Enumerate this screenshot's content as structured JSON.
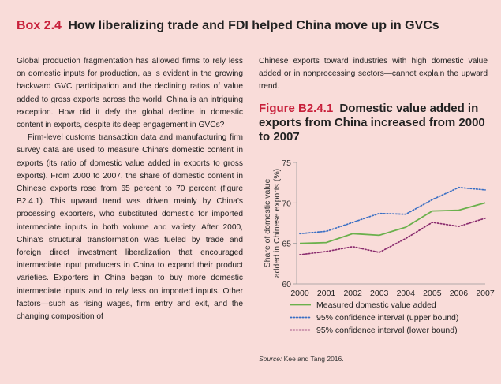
{
  "box": {
    "number": "Box 2.4",
    "title": "How liberalizing trade and FDI helped China move up in GVCs"
  },
  "body": {
    "paragraph1": "Global production fragmentation has allowed firms to rely less on domestic inputs for production, as is evident in the growing backward GVC participation and the declining ratios of value added to gross exports across the world. China is an intriguing exception. How did it defy the global decline in domestic content in exports, despite its deep engagement in GVCs?",
    "paragraph2": "Firm-level customs transaction data and manufacturing firm survey data are used to measure China's domestic content in exports (its ratio of domestic value added in exports to gross exports). From 2000 to 2007, the share of domestic content in Chinese exports rose from 65 percent to 70 percent (figure B2.4.1). This upward trend was driven mainly by China's processing exporters, who substituted domestic for imported intermediate inputs in both volume and variety. After 2000, China's structural transformation was fueled by trade and foreign direct investment liberalization that encouraged intermediate input producers in China to expand their product varieties. Exporters in China began to buy more domestic intermediate inputs and to rely less on imported inputs. Other factors—such as rising wages, firm entry and exit, and the changing composition of",
    "paragraph2_cont": "Chinese exports toward industries with high domestic value added or in nonprocessing sectors—cannot explain the upward trend."
  },
  "figure": {
    "number": "Figure B2.4.1",
    "title": "Domestic value added in exports from China increased from 2000 to 2007",
    "source_label": "Source:",
    "source_text": "Kee and Tang 2016."
  },
  "chart_data": {
    "type": "line",
    "x": [
      2000,
      2001,
      2002,
      2003,
      2004,
      2005,
      2006,
      2007
    ],
    "ylabel": "Share of domestic value added in Chinese exports (%)",
    "xlabel": "",
    "ylim": [
      60,
      75
    ],
    "yticks": [
      60,
      65,
      70,
      75
    ],
    "grid": false,
    "legend_position": "bottom",
    "series": [
      {
        "name": "Measured domestic value added",
        "style": "solid",
        "color": "#6ab04c",
        "values": [
          65.0,
          65.1,
          66.2,
          66.0,
          67.0,
          69.0,
          69.1,
          70.0
        ]
      },
      {
        "name": "95% confidence interval (upper bound)",
        "style": "dotted",
        "color": "#3a6fc4",
        "values": [
          66.2,
          66.5,
          67.6,
          68.7,
          68.6,
          70.4,
          71.9,
          71.6
        ]
      },
      {
        "name": "95% confidence interval (lower bound)",
        "style": "dotted",
        "color": "#8a2c6e",
        "values": [
          63.6,
          64.0,
          64.6,
          63.9,
          65.6,
          67.6,
          67.1,
          68.1
        ]
      }
    ]
  }
}
